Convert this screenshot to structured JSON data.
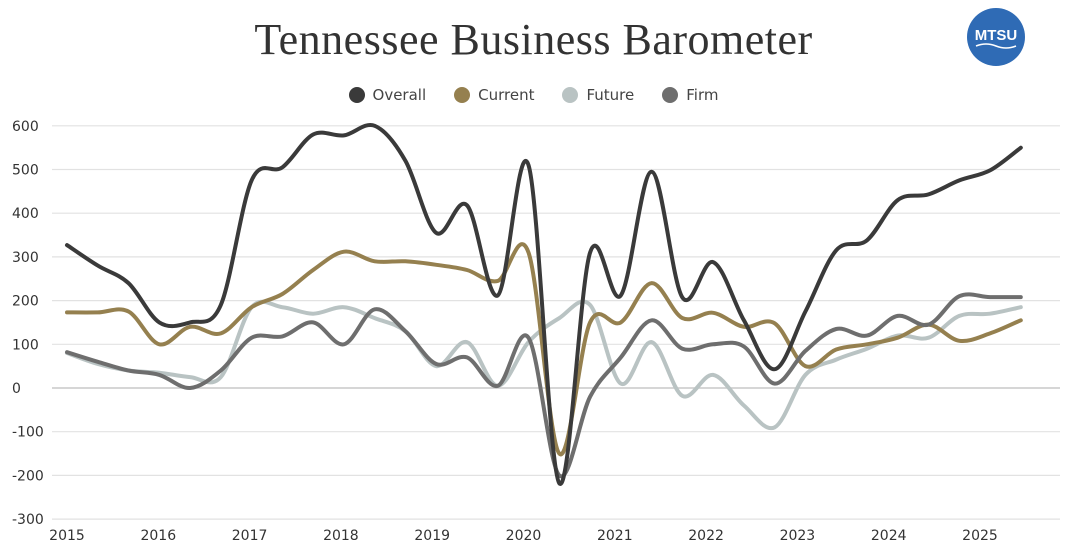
{
  "chart_data": {
    "type": "line",
    "title": "Tennessee Business Barometer",
    "logo_text": "MTSU",
    "xlabel": "",
    "ylabel": "",
    "ylim": [
      -300,
      600
    ],
    "yticks": [
      600,
      500,
      400,
      300,
      200,
      100,
      0,
      -100,
      -200,
      -300
    ],
    "xticks": [
      2015,
      2016,
      2017,
      2018,
      2019,
      2020,
      2021,
      2022,
      2023,
      2024,
      2025
    ],
    "xlim": [
      2015,
      2025.45
    ],
    "grid": true,
    "legend_position": "top-center",
    "x_start": 2015,
    "x_step": 0.337,
    "series": [
      {
        "name": "Overall",
        "color": "#3a3a3a",
        "values": [
          327,
          280,
          240,
          150,
          150,
          190,
          475,
          505,
          580,
          578,
          600,
          520,
          355,
          418,
          212,
          510,
          -218,
          310,
          212,
          495,
          207,
          288,
          155,
          43,
          175,
          315,
          338,
          430,
          443,
          475,
          498,
          550
        ]
      },
      {
        "name": "Current",
        "color": "#95804f",
        "values": [
          173,
          173,
          175,
          100,
          140,
          125,
          185,
          215,
          270,
          312,
          290,
          290,
          282,
          270,
          245,
          310,
          -150,
          150,
          150,
          240,
          160,
          172,
          140,
          148,
          50,
          88,
          100,
          115,
          145,
          108,
          125,
          155
        ]
      },
      {
        "name": "Future",
        "color": "#b9c3c3",
        "values": [
          80,
          55,
          40,
          35,
          25,
          25,
          185,
          185,
          170,
          185,
          160,
          130,
          50,
          105,
          5,
          105,
          160,
          190,
          10,
          105,
          -18,
          30,
          -40,
          -90,
          30,
          65,
          90,
          120,
          115,
          165,
          170,
          185
        ]
      },
      {
        "name": "Firm",
        "color": "#6e6e6e",
        "values": [
          82,
          60,
          40,
          30,
          0,
          40,
          115,
          118,
          150,
          100,
          180,
          130,
          55,
          70,
          5,
          115,
          -200,
          -20,
          70,
          155,
          90,
          100,
          95,
          10,
          85,
          135,
          120,
          165,
          145,
          210,
          208,
          208
        ]
      }
    ]
  }
}
